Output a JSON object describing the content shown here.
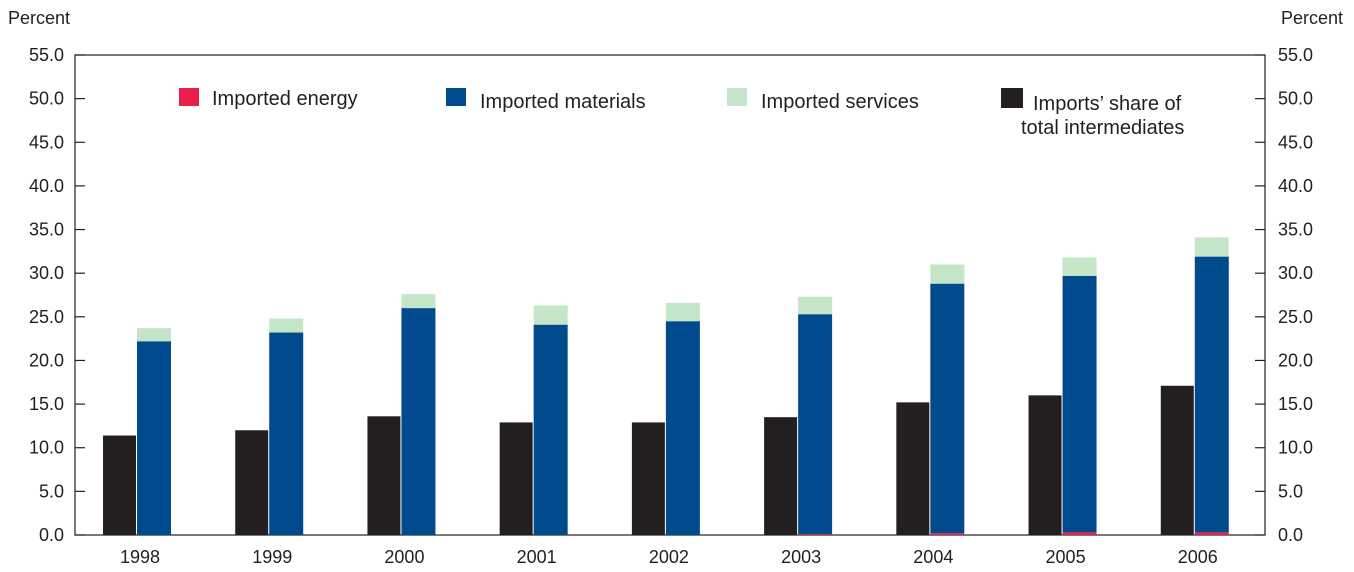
{
  "chart_data": {
    "type": "bar",
    "categories": [
      "1998",
      "1999",
      "2000",
      "2001",
      "2002",
      "2003",
      "2004",
      "2005",
      "2006"
    ],
    "stacked_series": [
      {
        "name": "Imported energy",
        "color": "#e8204a",
        "values": [
          0.0,
          0.0,
          0.0,
          0.0,
          0.0,
          0.1,
          0.2,
          0.3,
          0.3
        ]
      },
      {
        "name": "Imported materials",
        "color": "#004b8d",
        "values": [
          22.2,
          23.2,
          26.0,
          24.1,
          24.5,
          25.2,
          28.6,
          29.4,
          31.6
        ]
      },
      {
        "name": "Imported services",
        "color": "#c5e5c8",
        "values": [
          1.5,
          1.6,
          1.6,
          2.2,
          2.1,
          2.0,
          2.2,
          2.1,
          2.2
        ]
      }
    ],
    "share_series": {
      "name": "Imports’ share of total intermediates",
      "name_lines": [
        "Imports’ share of",
        "total intermediates"
      ],
      "color": "#231f20",
      "values": [
        11.4,
        12.0,
        13.6,
        12.9,
        12.9,
        13.5,
        15.2,
        16.0,
        17.1
      ]
    },
    "y_ticks": [
      "0.0",
      "5.0",
      "10.0",
      "15.0",
      "20.0",
      "25.0",
      "30.0",
      "35.0",
      "40.0",
      "45.0",
      "50.0",
      "55.0"
    ],
    "ylim": [
      0,
      55
    ],
    "ylabel_left": "Percent",
    "ylabel_right": "Percent",
    "grid": false,
    "legend_position": "top"
  }
}
